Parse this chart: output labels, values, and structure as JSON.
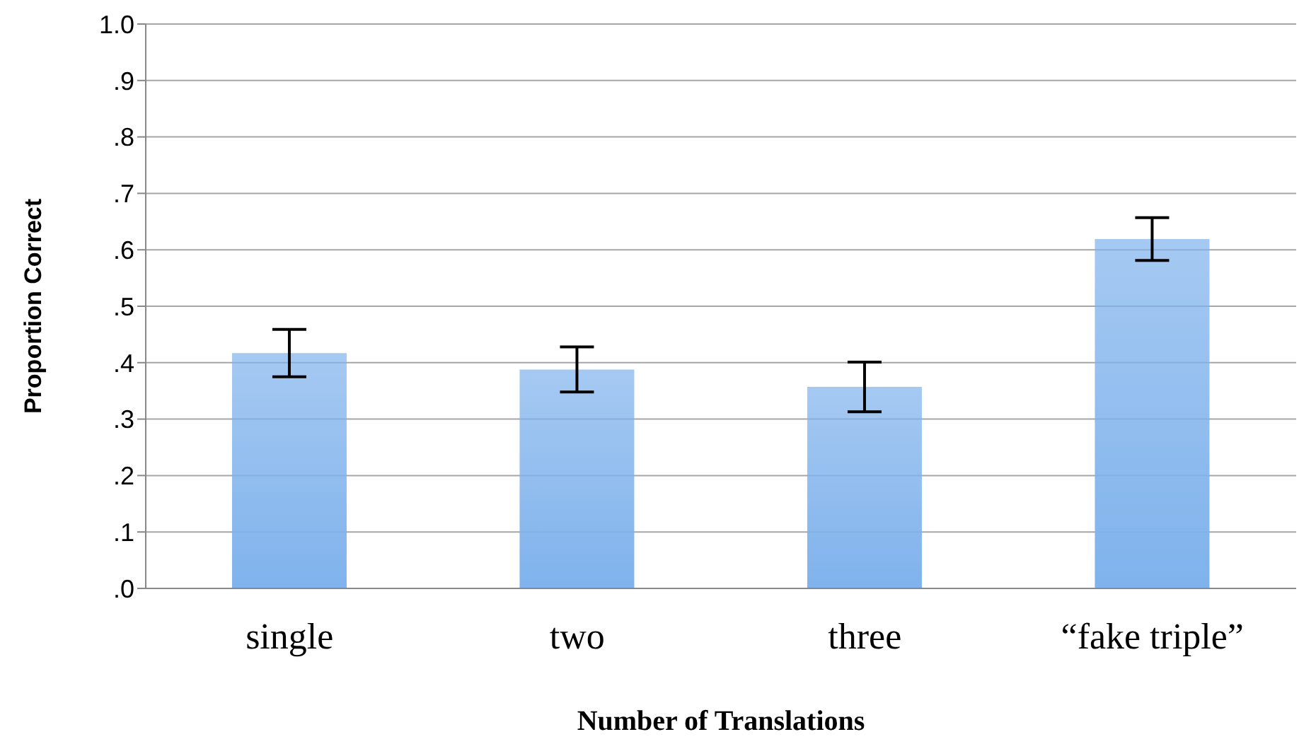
{
  "chart_data": {
    "type": "bar",
    "xlabel": "Number of Translations",
    "ylabel": "Proportion Correct",
    "categories": [
      "single",
      "two",
      "three",
      "“fake triple”"
    ],
    "values": [
      0.417,
      0.388,
      0.357,
      0.619
    ],
    "errors": [
      0.042,
      0.04,
      0.044,
      0.038
    ],
    "color": "#7fb2ec",
    "ylim": [
      0,
      1
    ],
    "yticks": [
      {
        "value": 0,
        "label": ".0"
      },
      {
        "value": 0.1,
        "label": ".1"
      },
      {
        "value": 0.2,
        "label": ".2"
      },
      {
        "value": 0.3,
        "label": ".3"
      },
      {
        "value": 0.4,
        "label": ".4"
      },
      {
        "value": 0.5,
        "label": ".5"
      },
      {
        "value": 0.6,
        "label": ".6"
      },
      {
        "value": 0.7,
        "label": ".7"
      },
      {
        "value": 0.8,
        "label": ".8"
      },
      {
        "value": 0.9,
        "label": ".9"
      },
      {
        "value": 1,
        "label": "1.0"
      }
    ],
    "grid": "y"
  }
}
